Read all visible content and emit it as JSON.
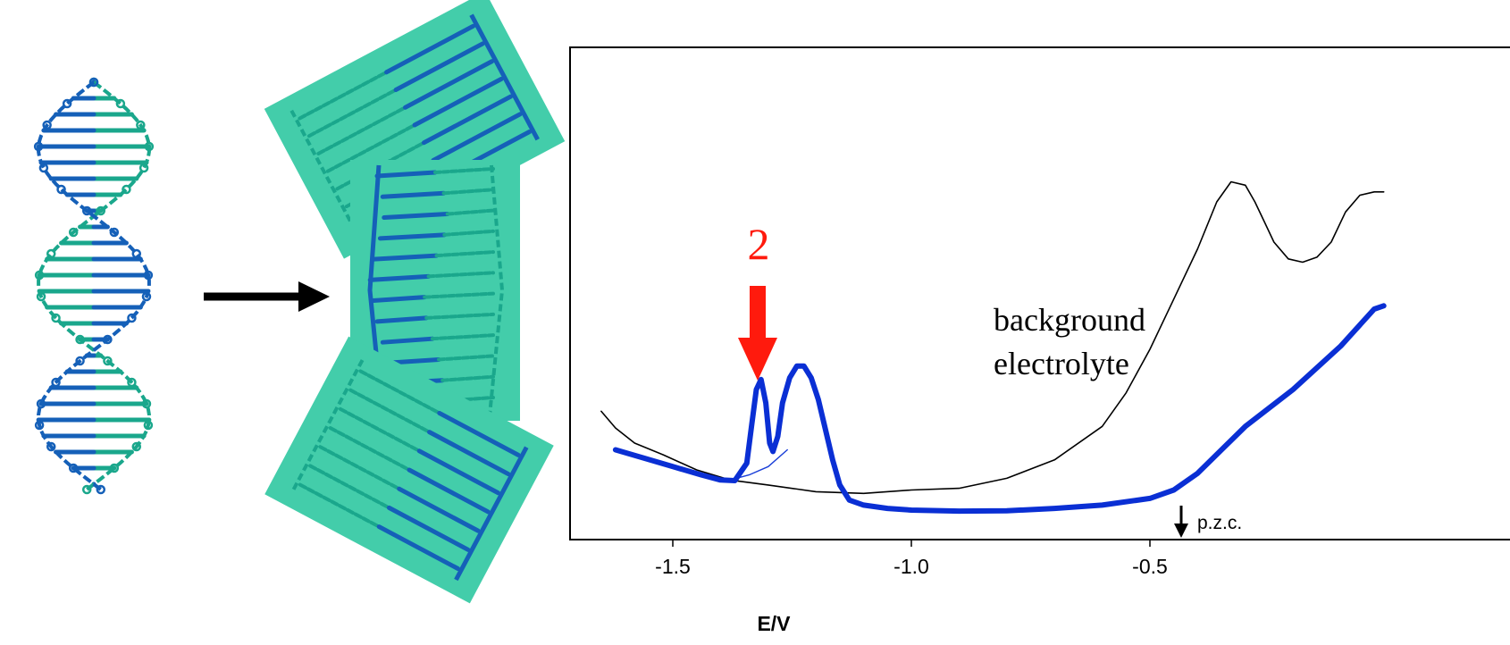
{
  "colors": {
    "strand_a": "#1aa78c",
    "strand_b": "#1560b8",
    "panel": "#43cdaa",
    "thick_curve": "#0a2fd4",
    "thin_curve": "#000000",
    "marker_arrow": "#ff1a0d"
  },
  "diagram": {
    "left_structure": "dna-double-helix",
    "right_structure": "unwound-dna-segments",
    "transition_arrow": "right-arrow-icon"
  },
  "chart_data": {
    "type": "line",
    "xlabel": "E/V",
    "x_ticks": [
      -1.5,
      -1.0,
      -0.5
    ],
    "x_tick_labels": [
      "-1.5",
      "-1.0",
      "-0.5"
    ],
    "xlim": [
      -1.66,
      -0.2
    ],
    "ylabel": "",
    "y_ticks": [],
    "grid": false,
    "annotations": {
      "peak_label": "2",
      "background_label_line1": "background",
      "background_label_line2": "electrolyte",
      "pzc_label": "p.z.c.",
      "pzc_x": -0.46,
      "peak_x": -1.31
    },
    "series": [
      {
        "style": "thin-black",
        "x": [
          -1.65,
          -1.62,
          -1.58,
          -1.52,
          -1.45,
          -1.38,
          -1.3,
          -1.2,
          -1.1,
          -1.0,
          -0.9,
          -0.8,
          -0.7,
          -0.6,
          -0.55,
          -0.5,
          -0.45,
          -0.4,
          -0.36,
          -0.33,
          -0.3,
          -0.28,
          -0.26,
          -0.24,
          -0.21,
          -0.18,
          -0.15,
          -0.12,
          -0.09,
          -0.06,
          -0.03,
          -0.01
        ],
        "y": [
          2.95,
          2.45,
          2.0,
          1.65,
          1.2,
          0.9,
          0.75,
          0.55,
          0.5,
          0.6,
          0.65,
          0.95,
          1.5,
          2.5,
          3.5,
          4.8,
          6.3,
          7.8,
          9.2,
          9.8,
          9.7,
          9.2,
          8.6,
          8.0,
          7.5,
          7.4,
          7.55,
          8.0,
          8.9,
          9.4,
          9.5,
          9.5
        ]
      },
      {
        "style": "thin-blue",
        "x": [
          -1.38,
          -1.34,
          -1.3,
          -1.26
        ],
        "y": [
          0.9,
          1.05,
          1.3,
          1.8
        ]
      },
      {
        "style": "thick-blue",
        "x": [
          -1.62,
          -1.56,
          -1.5,
          -1.44,
          -1.4,
          -1.37,
          -1.345,
          -1.335,
          -1.325,
          -1.315,
          -1.305,
          -1.297,
          -1.29,
          -1.28,
          -1.27,
          -1.255,
          -1.24,
          -1.225,
          -1.21,
          -1.195,
          -1.18,
          -1.165,
          -1.15,
          -1.13,
          -1.1,
          -1.05,
          -1.0,
          -0.9,
          -0.8,
          -0.7,
          -0.6,
          -0.5,
          -0.45,
          -0.4,
          -0.35,
          -0.3,
          -0.2,
          -0.1,
          -0.03,
          -0.01
        ],
        "y": [
          1.8,
          1.55,
          1.3,
          1.05,
          0.9,
          0.88,
          1.4,
          2.5,
          3.6,
          3.9,
          3.2,
          2.0,
          1.75,
          2.2,
          3.2,
          3.95,
          4.3,
          4.3,
          3.95,
          3.3,
          2.4,
          1.5,
          0.75,
          0.3,
          0.15,
          0.05,
          0.0,
          -0.03,
          -0.02,
          0.05,
          0.15,
          0.35,
          0.6,
          1.1,
          1.8,
          2.5,
          3.6,
          4.9,
          6.0,
          6.1
        ]
      }
    ]
  }
}
